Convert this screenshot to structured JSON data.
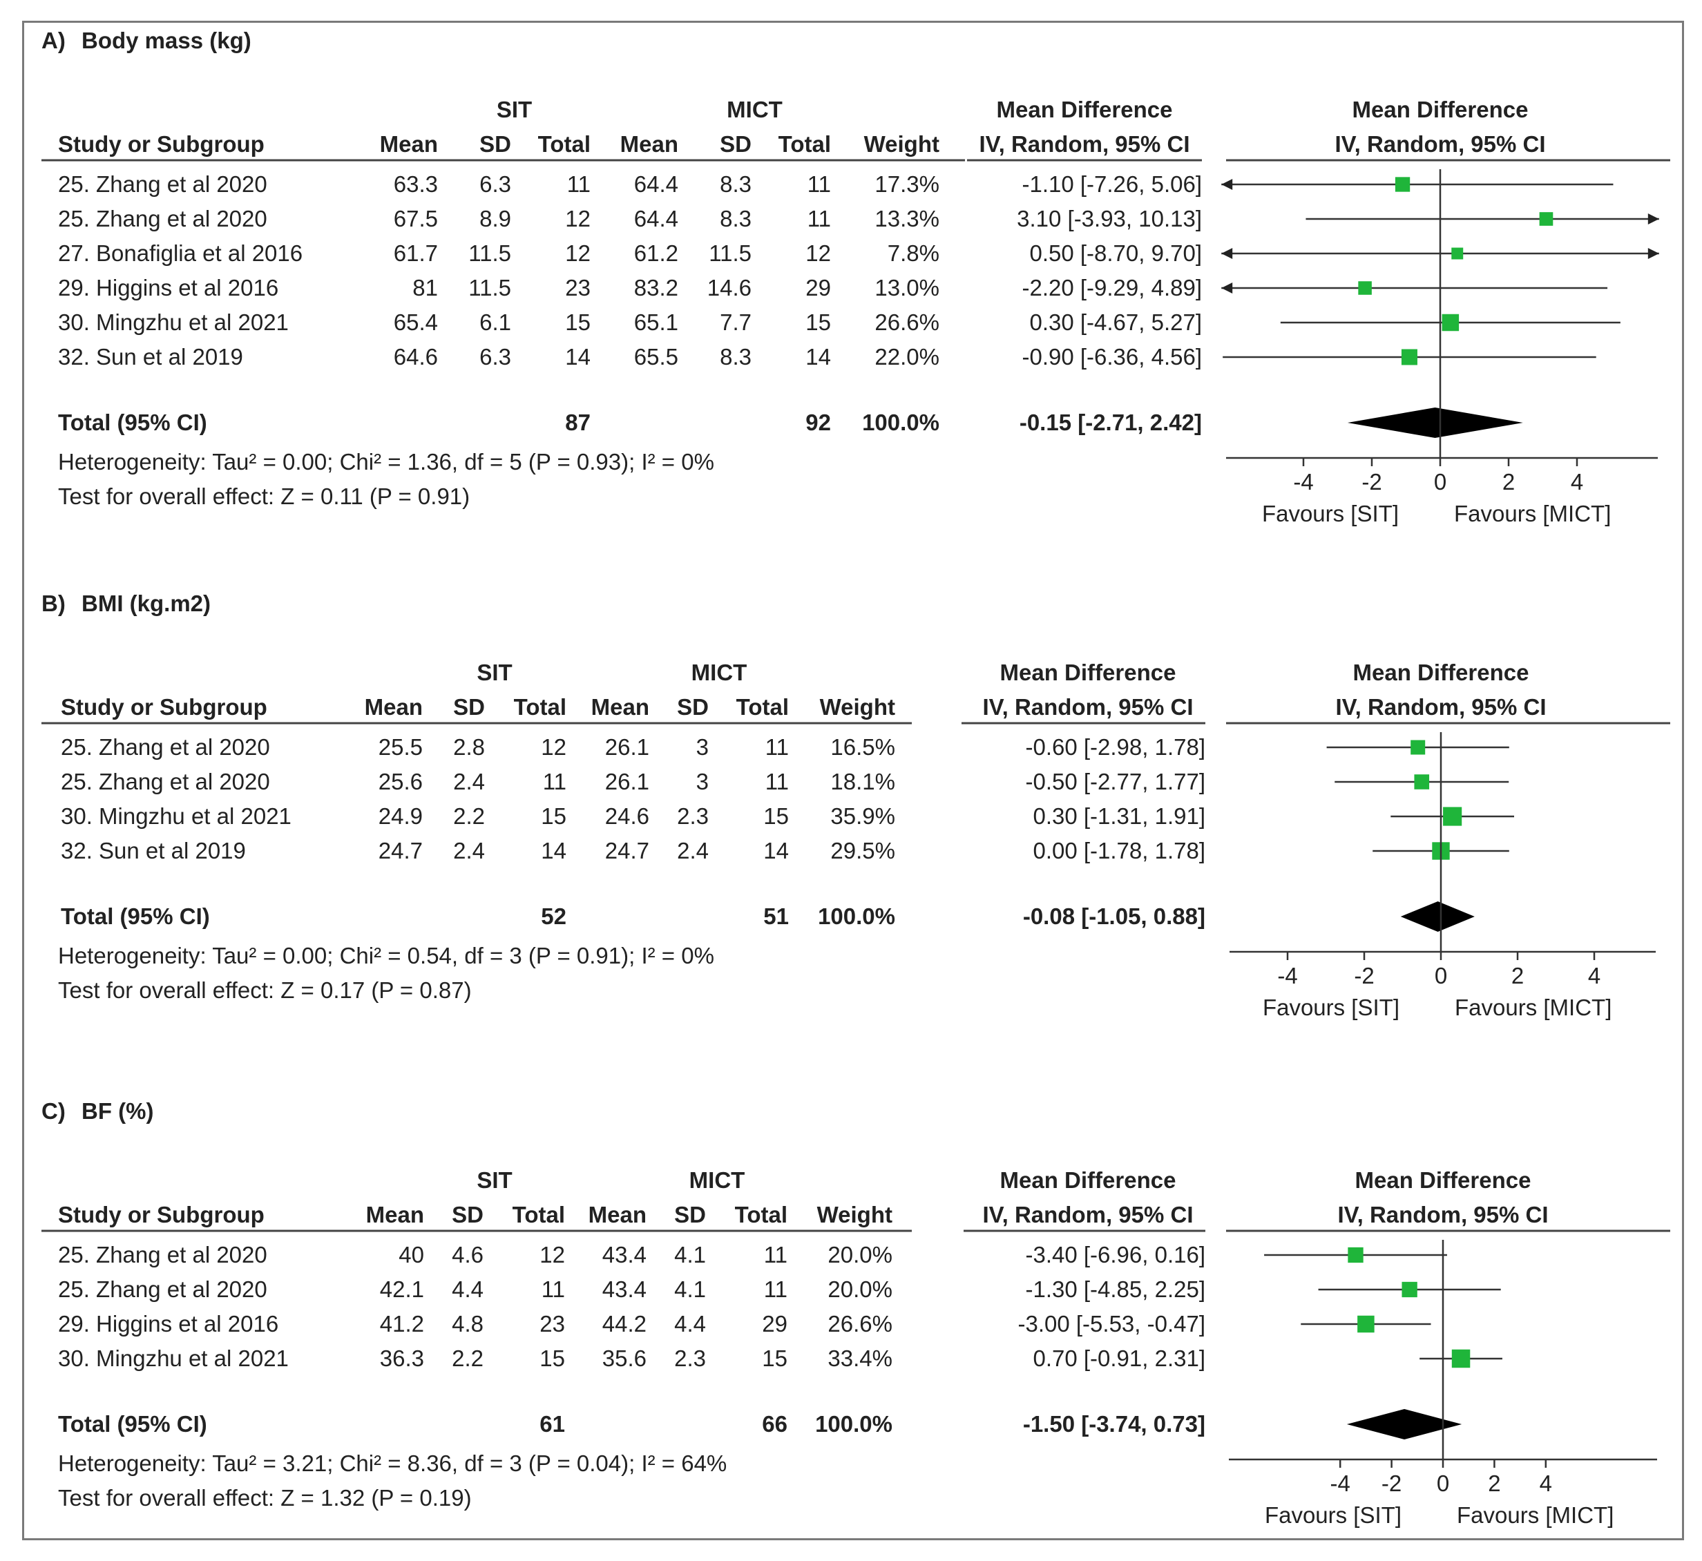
{
  "chart_data": [
    {
      "type": "forest",
      "panel_label": "A)",
      "title": "Body mass (kg)",
      "group1_label": "SIT",
      "group2_label": "MICT",
      "col_headers": [
        "Study or Subgroup",
        "Mean",
        "SD",
        "Total",
        "Mean",
        "SD",
        "Total",
        "Weight"
      ],
      "md_header": [
        "Mean Difference",
        "IV, Random, 95% CI"
      ],
      "plot_header": [
        "Mean Difference",
        "IV, Random, 95% CI"
      ],
      "studies": [
        {
          "name": "25. Zhang et al 2020",
          "sit_mean": "63.3",
          "sit_sd": "6.3",
          "sit_total": "11",
          "mict_mean": "64.4",
          "mict_sd": "8.3",
          "mict_total": "11",
          "weight": "17.3%",
          "ci_text": "-1.10 [-7.26, 5.06]",
          "md": -1.1,
          "lo": -7.26,
          "hi": 5.06,
          "w": 17.3
        },
        {
          "name": "25. Zhang et al 2020",
          "sit_mean": "67.5",
          "sit_sd": "8.9",
          "sit_total": "12",
          "mict_mean": "64.4",
          "mict_sd": "8.3",
          "mict_total": "11",
          "weight": "13.3%",
          "ci_text": "3.10 [-3.93, 10.13]",
          "md": 3.1,
          "lo": -3.93,
          "hi": 10.13,
          "w": 13.3
        },
        {
          "name": "27. Bonafiglia et al 2016",
          "sit_mean": "61.7",
          "sit_sd": "11.5",
          "sit_total": "12",
          "mict_mean": "61.2",
          "mict_sd": "11.5",
          "mict_total": "12",
          "weight": "7.8%",
          "ci_text": "0.50 [-8.70, 9.70]",
          "md": 0.5,
          "lo": -8.7,
          "hi": 9.7,
          "w": 7.8
        },
        {
          "name": "29. Higgins et al 2016",
          "sit_mean": "81",
          "sit_sd": "11.5",
          "sit_total": "23",
          "mict_mean": "83.2",
          "mict_sd": "14.6",
          "mict_total": "29",
          "weight": "13.0%",
          "ci_text": "-2.20 [-9.29, 4.89]",
          "md": -2.2,
          "lo": -9.29,
          "hi": 4.89,
          "w": 13.0
        },
        {
          "name": "30. Mingzhu et al 2021",
          "sit_mean": "65.4",
          "sit_sd": "6.1",
          "sit_total": "15",
          "mict_mean": "65.1",
          "mict_sd": "7.7",
          "mict_total": "15",
          "weight": "26.6%",
          "ci_text": "0.30 [-4.67, 5.27]",
          "md": 0.3,
          "lo": -4.67,
          "hi": 5.27,
          "w": 26.6
        },
        {
          "name": "32. Sun et al 2019",
          "sit_mean": "64.6",
          "sit_sd": "6.3",
          "sit_total": "14",
          "mict_mean": "65.5",
          "mict_sd": "8.3",
          "mict_total": "14",
          "weight": "22.0%",
          "ci_text": "-0.90 [-6.36, 4.56]",
          "md": -0.9,
          "lo": -6.36,
          "hi": 4.56,
          "w": 22.0
        }
      ],
      "total": {
        "label": "Total (95% CI)",
        "sit_total": "87",
        "mict_total": "92",
        "weight": "100.0%",
        "ci_text": "-0.15 [-2.71, 2.42]",
        "md": -0.15,
        "lo": -2.71,
        "hi": 2.42
      },
      "heterogeneity": "Heterogeneity: Tau² = 0.00; Chi² = 1.36, df = 5 (P = 0.93); I² = 0%",
      "overall": "Test for overall effect: Z = 0.11 (P = 0.91)",
      "xlim": [
        -6.4,
        6.4
      ],
      "ticks": [
        -4,
        -2,
        0,
        2,
        4
      ],
      "favours_left": "Favours [SIT]",
      "favours_right": "Favours [MICT]",
      "point_color": "#1fb53a"
    },
    {
      "type": "forest",
      "panel_label": "B)",
      "title": "BMI (kg.m2)",
      "group1_label": "SIT",
      "group2_label": "MICT",
      "col_headers": [
        "Study or Subgroup",
        "Mean",
        "SD",
        "Total",
        "Mean",
        "SD",
        "Total",
        "Weight"
      ],
      "md_header": [
        "Mean Difference",
        "IV, Random, 95% CI"
      ],
      "plot_header": [
        "Mean Difference",
        "IV, Random, 95% CI"
      ],
      "studies": [
        {
          "name": "25. Zhang et al 2020",
          "sit_mean": "25.5",
          "sit_sd": "2.8",
          "sit_total": "12",
          "mict_mean": "26.1",
          "mict_sd": "3",
          "mict_total": "11",
          "weight": "16.5%",
          "ci_text": "-0.60 [-2.98, 1.78]",
          "md": -0.6,
          "lo": -2.98,
          "hi": 1.78,
          "w": 16.5
        },
        {
          "name": "25. Zhang et al 2020",
          "sit_mean": "25.6",
          "sit_sd": "2.4",
          "sit_total": "11",
          "mict_mean": "26.1",
          "mict_sd": "3",
          "mict_total": "11",
          "weight": "18.1%",
          "ci_text": "-0.50 [-2.77, 1.77]",
          "md": -0.5,
          "lo": -2.77,
          "hi": 1.77,
          "w": 18.1
        },
        {
          "name": "30. Mingzhu et al 2021",
          "sit_mean": "24.9",
          "sit_sd": "2.2",
          "sit_total": "15",
          "mict_mean": "24.6",
          "mict_sd": "2.3",
          "mict_total": "15",
          "weight": "35.9%",
          "ci_text": "0.30 [-1.31, 1.91]",
          "md": 0.3,
          "lo": -1.31,
          "hi": 1.91,
          "w": 35.9
        },
        {
          "name": "32. Sun et al 2019",
          "sit_mean": "24.7",
          "sit_sd": "2.4",
          "sit_total": "14",
          "mict_mean": "24.7",
          "mict_sd": "2.4",
          "mict_total": "14",
          "weight": "29.5%",
          "ci_text": "0.00 [-1.78, 1.78]",
          "md": 0.0,
          "lo": -1.78,
          "hi": 1.78,
          "w": 29.5
        }
      ],
      "total": {
        "label": "Total (95% CI)",
        "sit_total": "52",
        "mict_total": "51",
        "weight": "100.0%",
        "ci_text": "-0.08 [-1.05, 0.88]",
        "md": -0.08,
        "lo": -1.05,
        "hi": 0.88
      },
      "heterogeneity": "Heterogeneity: Tau² = 0.00; Chi² = 0.54, df = 3 (P = 0.91); I² = 0%",
      "overall": "Test for overall effect: Z = 0.17 (P = 0.87)",
      "xlim": [
        -5.6,
        5.6
      ],
      "ticks": [
        -4,
        -2,
        0,
        2,
        4
      ],
      "favours_left": "Favours [SIT]",
      "favours_right": "Favours [MICT]",
      "point_color": "#1fb53a"
    },
    {
      "type": "forest",
      "panel_label": "C)",
      "title": "BF (%)",
      "group1_label": "SIT",
      "group2_label": "MICT",
      "col_headers": [
        "Study or Subgroup",
        "Mean",
        "SD",
        "Total",
        "Mean",
        "SD",
        "Total",
        "Weight"
      ],
      "md_header": [
        "Mean Difference",
        "IV, Random, 95% CI"
      ],
      "plot_header": [
        "Mean Difference",
        "IV, Random, 95% CI"
      ],
      "studies": [
        {
          "name": "25. Zhang et al 2020",
          "sit_mean": "40",
          "sit_sd": "4.6",
          "sit_total": "12",
          "mict_mean": "43.4",
          "mict_sd": "4.1",
          "mict_total": "11",
          "weight": "20.0%",
          "ci_text": "-3.40 [-6.96, 0.16]",
          "md": -3.4,
          "lo": -6.96,
          "hi": 0.16,
          "w": 20.0
        },
        {
          "name": "25. Zhang et al 2020",
          "sit_mean": "42.1",
          "sit_sd": "4.4",
          "sit_total": "11",
          "mict_mean": "43.4",
          "mict_sd": "4.1",
          "mict_total": "11",
          "weight": "20.0%",
          "ci_text": "-1.30 [-4.85, 2.25]",
          "md": -1.3,
          "lo": -4.85,
          "hi": 2.25,
          "w": 20.0
        },
        {
          "name": "29. Higgins et al 2016",
          "sit_mean": "41.2",
          "sit_sd": "4.8",
          "sit_total": "23",
          "mict_mean": "44.2",
          "mict_sd": "4.4",
          "mict_total": "29",
          "weight": "26.6%",
          "ci_text": "-3.00 [-5.53, -0.47]",
          "md": -3.0,
          "lo": -5.53,
          "hi": -0.47,
          "w": 26.6
        },
        {
          "name": "30. Mingzhu et al 2021",
          "sit_mean": "36.3",
          "sit_sd": "2.2",
          "sit_total": "15",
          "mict_mean": "35.6",
          "mict_sd": "2.3",
          "mict_total": "15",
          "weight": "33.4%",
          "ci_text": "0.70 [-0.91, 2.31]",
          "md": 0.7,
          "lo": -0.91,
          "hi": 2.31,
          "w": 33.4
        }
      ],
      "total": {
        "label": "Total (95% CI)",
        "sit_total": "61",
        "mict_total": "66",
        "weight": "100.0%",
        "ci_text": "-1.50 [-3.74, 0.73]",
        "md": -1.5,
        "lo": -3.74,
        "hi": 0.73
      },
      "heterogeneity": "Heterogeneity: Tau² = 3.21; Chi² = 8.36, df = 3 (P = 0.04); I² = 64%",
      "overall": "Test for overall effect: Z = 1.32 (P = 0.19)",
      "xlim": [
        -8.6,
        8.6
      ],
      "ticks": [
        -4,
        -2,
        0,
        2,
        4
      ],
      "favours_left": "Favours [SIT]",
      "favours_right": "Favours [MICT]",
      "point_color": "#1fb53a"
    }
  ]
}
